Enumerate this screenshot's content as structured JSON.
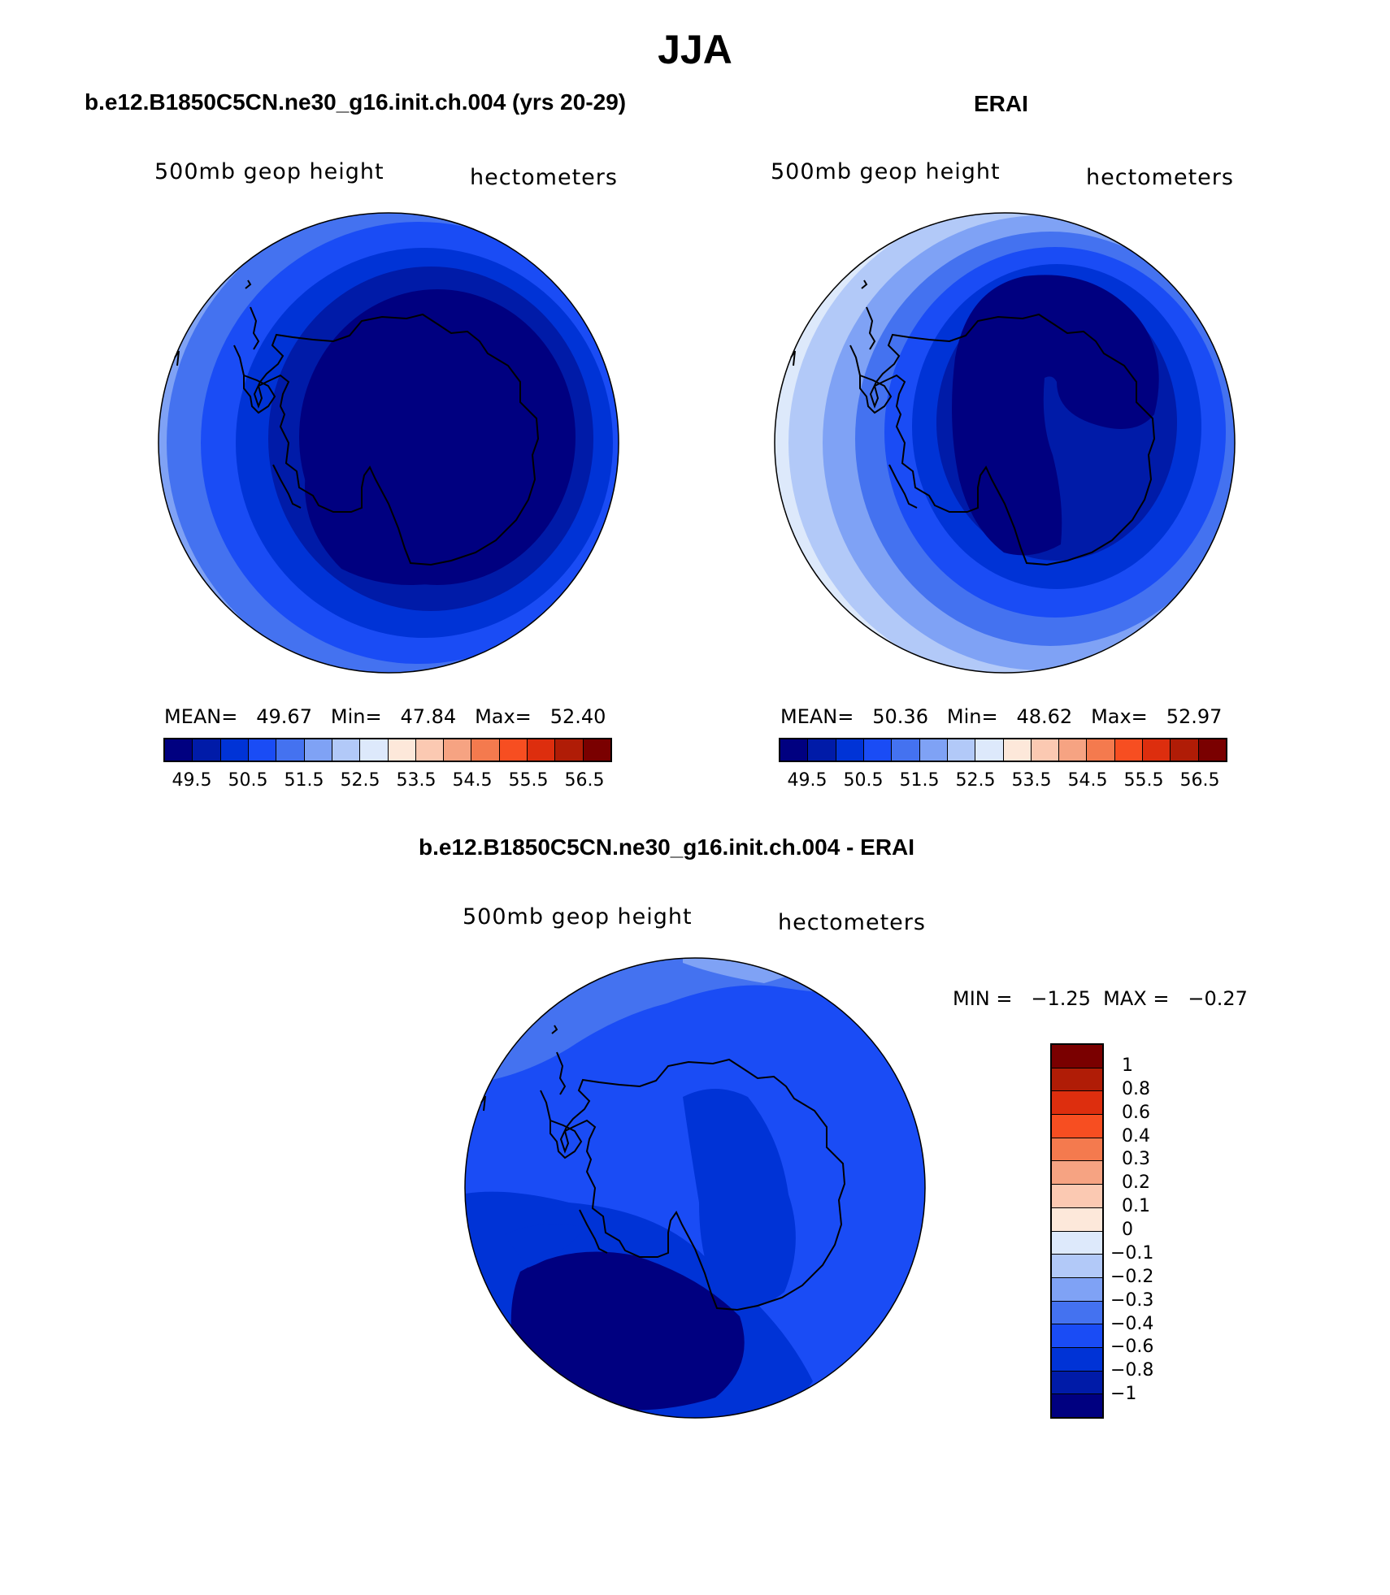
{
  "page": {
    "title": "JJA"
  },
  "panels": [
    {
      "title": "b.e12.B1850C5CN.ne30_g16.init.ch.004 (yrs 20-29)",
      "left_label": "500mb geop height",
      "right_label": "hectometers",
      "stats": {
        "mean_label": "MEAN=",
        "mean": "49.67",
        "min_label": "Min=",
        "min": "47.84",
        "max_label": "Max=",
        "max": "52.40"
      }
    },
    {
      "title": "ERAI",
      "left_label": "500mb geop height",
      "right_label": "hectometers",
      "stats": {
        "mean_label": "MEAN=",
        "mean": "50.36",
        "min_label": "Min=",
        "min": "48.62",
        "max_label": "Max=",
        "max": "52.97"
      }
    },
    {
      "title": "b.e12.B1850C5CN.ne30_g16.init.ch.004 - ERAI",
      "left_label": "500mb geop height",
      "right_label": "hectometers",
      "minmax": "MIN =   −1.25  MAX =   −0.27"
    }
  ],
  "colorbar_top": {
    "colors": [
      "#000080",
      "#001ba8",
      "#0033d6",
      "#1a4cf5",
      "#4472f0",
      "#7fa2f5",
      "#b2c9f8",
      "#dde9fb",
      "#fde8da",
      "#fbc9b2",
      "#f6a382",
      "#f47a4e",
      "#f74e21",
      "#dd2e0e",
      "#b01c06",
      "#7a0000"
    ],
    "tick_labels": [
      "49.5",
      "50.5",
      "51.5",
      "52.5",
      "53.5",
      "54.5",
      "55.5",
      "56.5"
    ]
  },
  "colorbar_diff": {
    "colors": [
      "#7a0000",
      "#b01c06",
      "#dd2e0e",
      "#f74e21",
      "#f47a4e",
      "#f6a382",
      "#fbc9b2",
      "#fde8da",
      "#dde9fb",
      "#b2c9f8",
      "#7fa2f5",
      "#4472f0",
      "#1a4cf5",
      "#0033d6",
      "#001ba8",
      "#000080"
    ],
    "tick_labels": [
      "1",
      "0.8",
      "0.6",
      "0.4",
      "0.3",
      "0.2",
      "0.1",
      "0",
      "−0.1",
      "−0.2",
      "−0.3",
      "−0.4",
      "−0.6",
      "−0.8",
      "−1"
    ]
  }
}
